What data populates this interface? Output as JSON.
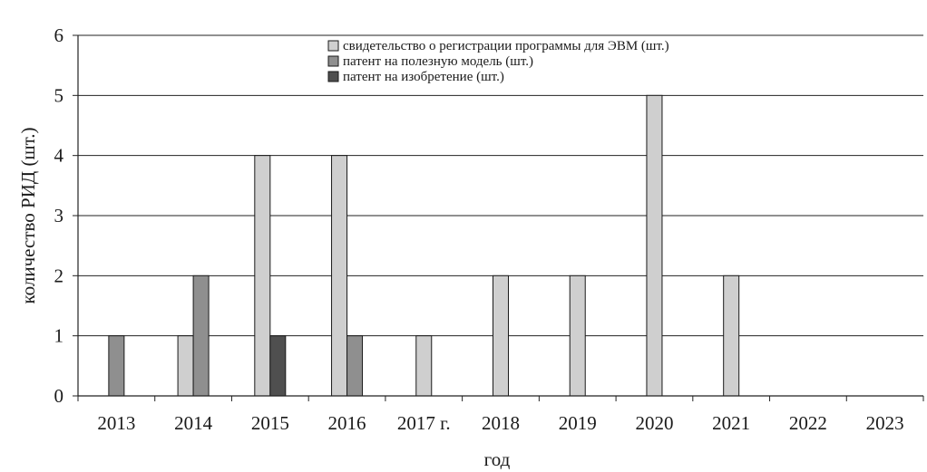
{
  "chart_data": {
    "type": "bar",
    "title": "",
    "xlabel": "год",
    "ylabel": "количество РИД (шт.)",
    "ylim": [
      0,
      6
    ],
    "yticks": [
      0,
      1,
      2,
      3,
      4,
      5,
      6
    ],
    "grid": true,
    "legend_position": "top-right",
    "categories": [
      "2013",
      "2014",
      "2015",
      "2016",
      "2017 г.",
      "2018",
      "2019",
      "2020",
      "2021",
      "2022",
      "2023"
    ],
    "series": [
      {
        "name": "свидетельство о регистрации программы для ЭВМ (шт.)",
        "color": "#cfcfcf",
        "values": [
          0,
          1,
          4,
          4,
          1,
          2,
          2,
          5,
          2,
          0,
          0
        ]
      },
      {
        "name": "патент на полезную модель (шт.)",
        "color": "#8f8f8f",
        "values": [
          1,
          2,
          0,
          1,
          0,
          0,
          0,
          0,
          0,
          0,
          0
        ]
      },
      {
        "name": "патент на изобретение (шт.)",
        "color": "#4f4f4f",
        "values": [
          0,
          0,
          1,
          0,
          0,
          0,
          0,
          0,
          0,
          0,
          0
        ]
      }
    ]
  }
}
